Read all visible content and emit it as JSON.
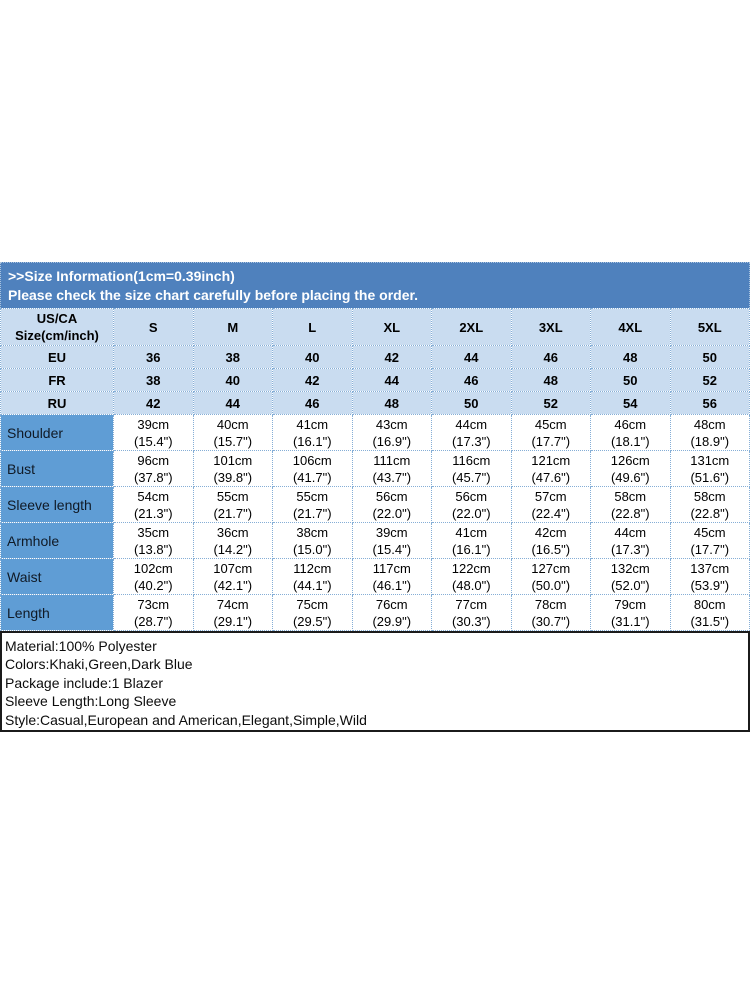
{
  "banner": {
    "line1": ">>Size Information(1cm=0.39inch)",
    "line2": "Please check the size chart carefully before placing the order."
  },
  "table": {
    "header": {
      "label_line1": "US/CA",
      "label_line2": "Size(cm/inch)",
      "sizes": [
        "S",
        "M",
        "L",
        "XL",
        "2XL",
        "3XL",
        "4XL",
        "5XL"
      ]
    },
    "region_rows": [
      {
        "label": "EU",
        "values": [
          "36",
          "38",
          "40",
          "42",
          "44",
          "46",
          "48",
          "50"
        ]
      },
      {
        "label": "FR",
        "values": [
          "38",
          "40",
          "42",
          "44",
          "46",
          "48",
          "50",
          "52"
        ]
      },
      {
        "label": "RU",
        "values": [
          "42",
          "44",
          "46",
          "48",
          "50",
          "52",
          "54",
          "56"
        ]
      }
    ],
    "measurement_rows": [
      {
        "label": "Shoulder",
        "cm": [
          "39cm",
          "40cm",
          "41cm",
          "43cm",
          "44cm",
          "45cm",
          "46cm",
          "48cm"
        ],
        "inch": [
          "(15.4\")",
          "(15.7\")",
          "(16.1\")",
          "(16.9\")",
          "(17.3\")",
          "(17.7\")",
          "(18.1\")",
          "(18.9\")"
        ]
      },
      {
        "label": "Bust",
        "cm": [
          "96cm",
          "101cm",
          "106cm",
          "111cm",
          "116cm",
          "121cm",
          "126cm",
          "131cm"
        ],
        "inch": [
          "(37.8\")",
          "(39.8\")",
          "(41.7\")",
          "(43.7\")",
          "(45.7\")",
          "(47.6\")",
          "(49.6\")",
          "(51.6\")"
        ]
      },
      {
        "label": "Sleeve length",
        "cm": [
          "54cm",
          "55cm",
          "55cm",
          "56cm",
          "56cm",
          "57cm",
          "58cm",
          "58cm"
        ],
        "inch": [
          "(21.3\")",
          "(21.7\")",
          "(21.7\")",
          "(22.0\")",
          "(22.0\")",
          "(22.4\")",
          "(22.8\")",
          "(22.8\")"
        ]
      },
      {
        "label": "Armhole",
        "cm": [
          "35cm",
          "36cm",
          "38cm",
          "39cm",
          "41cm",
          "42cm",
          "44cm",
          "45cm"
        ],
        "inch": [
          "(13.8\")",
          "(14.2\")",
          "(15.0\")",
          "(15.4\")",
          "(16.1\")",
          "(16.5\")",
          "(17.3\")",
          "(17.7\")"
        ]
      },
      {
        "label": "Waist",
        "cm": [
          "102cm",
          "107cm",
          "112cm",
          "117cm",
          "122cm",
          "127cm",
          "132cm",
          "137cm"
        ],
        "inch": [
          "(40.2\")",
          "(42.1\")",
          "(44.1\")",
          "(46.1\")",
          "(48.0\")",
          "(50.0\")",
          "(52.0\")",
          "(53.9\")"
        ]
      },
      {
        "label": "Length",
        "cm": [
          "73cm",
          "74cm",
          "75cm",
          "76cm",
          "77cm",
          "78cm",
          "79cm",
          "80cm"
        ],
        "inch": [
          "(28.7\")",
          "(29.1\")",
          "(29.5\")",
          "(29.9\")",
          "(30.3\")",
          "(30.7\")",
          "(31.1\")",
          "(31.5\")"
        ]
      }
    ]
  },
  "details": {
    "lines": [
      "Material:100% Polyester",
      "Colors:Khaki,Green,Dark Blue",
      "Package include:1 Blazer",
      "Sleeve Length:Long Sleeve",
      "Style:Casual,European and American,Elegant,Simple,Wild"
    ]
  },
  "colors": {
    "banner_blue": "#4f81bd",
    "row_light_blue": "#c9dcf0",
    "label_column_blue": "#5f9dd5",
    "grid_line_blue": "#85aed6",
    "details_border": "#1b1b1b"
  }
}
